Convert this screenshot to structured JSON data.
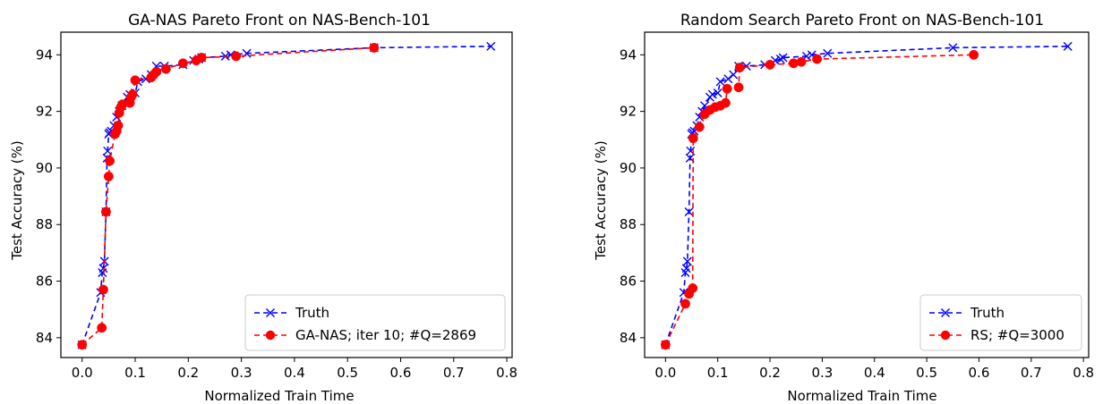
{
  "chart_data": [
    {
      "type": "line",
      "title": "GA-NAS Pareto Front on NAS-Bench-101",
      "xlabel": "Normalized Train Time",
      "ylabel": "Test Accuracy (%)",
      "xlim": [
        -0.04,
        0.81
      ],
      "ylim": [
        83.3,
        94.8
      ],
      "xticks": [
        0.0,
        0.1,
        0.2,
        0.3,
        0.4,
        0.5,
        0.6,
        0.7,
        0.8
      ],
      "xtick_labels": [
        "0.0",
        "0.1",
        "0.2",
        "0.3",
        "0.4",
        "0.5",
        "0.6",
        "0.7",
        "0.8"
      ],
      "yticks": [
        84,
        86,
        88,
        90,
        92,
        94
      ],
      "ytick_labels": [
        "84",
        "86",
        "88",
        "90",
        "92",
        "94"
      ],
      "grid": false,
      "legend_position": "bottom-right",
      "series": [
        {
          "name": "Truth",
          "color": "#0000ff",
          "marker": "x",
          "linestyle": "dashed",
          "x": [
            0.0,
            0.035,
            0.038,
            0.04,
            0.042,
            0.045,
            0.047,
            0.048,
            0.05,
            0.052,
            0.055,
            0.06,
            0.065,
            0.07,
            0.075,
            0.085,
            0.09,
            0.1,
            0.105,
            0.12,
            0.13,
            0.14,
            0.155,
            0.19,
            0.21,
            0.22,
            0.225,
            0.27,
            0.28,
            0.31,
            0.55,
            0.77
          ],
          "y": [
            83.75,
            85.6,
            86.3,
            86.45,
            86.7,
            88.45,
            90.35,
            90.6,
            91.2,
            91.25,
            91.3,
            91.5,
            91.8,
            92.0,
            92.2,
            92.5,
            92.6,
            92.65,
            93.05,
            93.15,
            93.3,
            93.6,
            93.6,
            93.65,
            93.8,
            93.85,
            93.9,
            93.95,
            94.0,
            94.05,
            94.25,
            94.3
          ]
        },
        {
          "name": "GA-NAS; iter 10; #Q=2869",
          "color": "#ff0000",
          "marker": "o",
          "linestyle": "dashed",
          "x": [
            0.0,
            0.037,
            0.04,
            0.045,
            0.05,
            0.052,
            0.062,
            0.065,
            0.068,
            0.07,
            0.073,
            0.076,
            0.09,
            0.092,
            0.095,
            0.1,
            0.13,
            0.135,
            0.14,
            0.158,
            0.19,
            0.215,
            0.225,
            0.29,
            0.55
          ],
          "y": [
            83.75,
            84.35,
            85.7,
            88.45,
            89.7,
            90.25,
            91.2,
            91.3,
            91.5,
            91.95,
            92.15,
            92.25,
            92.3,
            92.5,
            92.6,
            93.1,
            93.2,
            93.3,
            93.4,
            93.5,
            93.7,
            93.8,
            93.9,
            93.95,
            94.25
          ]
        }
      ]
    },
    {
      "type": "line",
      "title": "Random Search Pareto Front on NAS-Bench-101",
      "xlabel": "Normalized Train Time",
      "ylabel": "Test Accuracy (%)",
      "xlim": [
        -0.04,
        0.81
      ],
      "ylim": [
        83.3,
        94.8
      ],
      "xticks": [
        0.0,
        0.1,
        0.2,
        0.3,
        0.4,
        0.5,
        0.6,
        0.7,
        0.8
      ],
      "xtick_labels": [
        "0.0",
        "0.1",
        "0.2",
        "0.3",
        "0.4",
        "0.5",
        "0.6",
        "0.7",
        "0.8"
      ],
      "yticks": [
        84,
        86,
        88,
        90,
        92,
        94
      ],
      "ytick_labels": [
        "84",
        "86",
        "88",
        "90",
        "92",
        "94"
      ],
      "grid": false,
      "legend_position": "bottom-right",
      "series": [
        {
          "name": "Truth",
          "color": "#0000ff",
          "marker": "x",
          "linestyle": "dashed",
          "x": [
            0.0,
            0.035,
            0.038,
            0.04,
            0.042,
            0.045,
            0.047,
            0.048,
            0.05,
            0.052,
            0.055,
            0.06,
            0.065,
            0.07,
            0.075,
            0.085,
            0.09,
            0.1,
            0.105,
            0.12,
            0.13,
            0.14,
            0.155,
            0.19,
            0.21,
            0.22,
            0.225,
            0.27,
            0.28,
            0.31,
            0.55,
            0.77
          ],
          "y": [
            83.75,
            85.6,
            86.3,
            86.45,
            86.7,
            88.45,
            90.35,
            90.6,
            91.2,
            91.25,
            91.3,
            91.5,
            91.8,
            92.0,
            92.2,
            92.5,
            92.6,
            92.65,
            93.05,
            93.15,
            93.3,
            93.6,
            93.6,
            93.65,
            93.8,
            93.85,
            93.9,
            93.95,
            94.0,
            94.05,
            94.25,
            94.3
          ]
        },
        {
          "name": "RS; #Q=3000",
          "color": "#ff0000",
          "marker": "o",
          "linestyle": "dashed",
          "x": [
            0.0,
            0.038,
            0.045,
            0.052,
            0.053,
            0.065,
            0.075,
            0.085,
            0.095,
            0.105,
            0.115,
            0.118,
            0.14,
            0.142,
            0.2,
            0.245,
            0.26,
            0.29,
            0.59
          ],
          "y": [
            83.75,
            85.2,
            85.55,
            85.75,
            91.05,
            91.45,
            91.9,
            92.05,
            92.15,
            92.2,
            92.3,
            92.8,
            92.85,
            93.55,
            93.65,
            93.7,
            93.75,
            93.85,
            94.0
          ]
        }
      ]
    }
  ]
}
